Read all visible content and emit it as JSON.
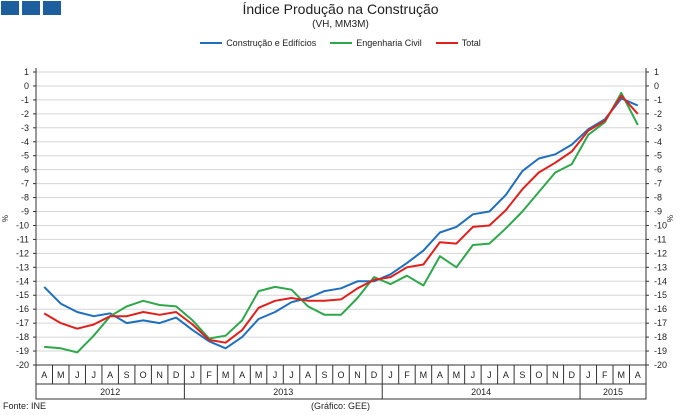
{
  "chart_data": {
    "type": "line",
    "title": "Índice Produção na Construção",
    "subtitle": "(VH, MM3M)",
    "ylabel": "%",
    "ylim": [
      -20,
      1
    ],
    "yticks": [
      1,
      0,
      -1,
      -2,
      -3,
      -4,
      -5,
      -6,
      -7,
      -8,
      -9,
      -10,
      -11,
      -12,
      -13,
      -14,
      -15,
      -16,
      -17,
      -18,
      -19,
      -20
    ],
    "categories": [
      "A",
      "M",
      "J",
      "J",
      "A",
      "S",
      "O",
      "N",
      "D",
      "J",
      "F",
      "M",
      "A",
      "M",
      "J",
      "J",
      "A",
      "S",
      "O",
      "N",
      "D",
      "J",
      "F",
      "M",
      "A",
      "M",
      "J",
      "J",
      "A",
      "S",
      "O",
      "N",
      "D",
      "J",
      "F",
      "M",
      "A"
    ],
    "years": [
      {
        "label": "2012",
        "start": 0,
        "end": 8
      },
      {
        "label": "2013",
        "start": 9,
        "end": 20
      },
      {
        "label": "2014",
        "start": 21,
        "end": 32
      },
      {
        "label": "2015",
        "start": 33,
        "end": 36
      }
    ],
    "series": [
      {
        "name": "Construção e Edifícios",
        "color": "#1f6fbf",
        "values": [
          -14.4,
          -15.6,
          -16.2,
          -16.5,
          -16.3,
          -17.0,
          -16.8,
          -17.0,
          -16.6,
          -17.5,
          -18.3,
          -18.8,
          -18.0,
          -16.7,
          -16.2,
          -15.5,
          -15.2,
          -14.7,
          -14.5,
          -14.0,
          -14.0,
          -13.5,
          -12.7,
          -11.8,
          -10.5,
          -10.1,
          -9.2,
          -9.0,
          -7.8,
          -6.1,
          -5.2,
          -4.9,
          -4.2,
          -3.1,
          -2.4,
          -0.9,
          -1.4
        ]
      },
      {
        "name": "Engenharia Civil",
        "color": "#2ea84a",
        "values": [
          -18.7,
          -18.8,
          -19.1,
          -17.9,
          -16.5,
          -15.8,
          -15.4,
          -15.7,
          -15.8,
          -16.8,
          -18.1,
          -17.9,
          -16.8,
          -14.7,
          -14.4,
          -14.6,
          -15.8,
          -16.4,
          -16.4,
          -15.2,
          -13.7,
          -14.2,
          -13.6,
          -14.3,
          -12.2,
          -13.0,
          -11.4,
          -11.3,
          -10.2,
          -9.0,
          -7.6,
          -6.2,
          -5.6,
          -3.5,
          -2.6,
          -0.5,
          -2.8
        ]
      },
      {
        "name": "Total",
        "color": "#e0201c",
        "values": [
          -16.3,
          -17.0,
          -17.4,
          -17.1,
          -16.5,
          -16.5,
          -16.2,
          -16.4,
          -16.2,
          -17.1,
          -18.2,
          -18.4,
          -17.5,
          -15.9,
          -15.4,
          -15.2,
          -15.4,
          -15.4,
          -15.3,
          -14.5,
          -13.9,
          -13.7,
          -13.0,
          -12.8,
          -11.2,
          -11.3,
          -10.1,
          -10.0,
          -8.9,
          -7.4,
          -6.2,
          -5.5,
          -4.7,
          -3.2,
          -2.5,
          -0.7,
          -2.0
        ]
      }
    ]
  },
  "footer": {
    "source": "Fonte: INE",
    "credit": "(Gráfico: GEE)"
  },
  "colors": {
    "logo": "#1d5e9e",
    "grid": "#d6d6d6"
  }
}
